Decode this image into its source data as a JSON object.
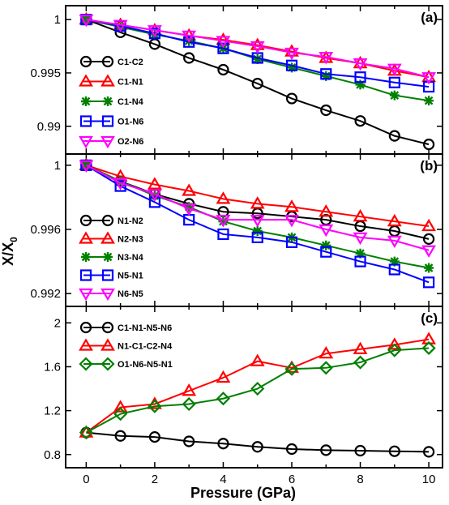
{
  "xlabel": "Pressure (GPa)",
  "ylabel_main": "X/X",
  "ylabel_sub": "0",
  "chart_data": [
    {
      "type": "line",
      "panel_label": "(a)",
      "x": [
        0,
        1,
        2,
        3,
        4,
        5,
        6,
        7,
        8,
        9,
        10
      ],
      "xlim": [
        -0.6,
        10.4
      ],
      "ylim": [
        0.9874,
        1.0013
      ],
      "yticks": [
        0.99,
        0.995,
        1
      ],
      "ytick_labels": [
        "0.99",
        "0.995",
        "1"
      ],
      "legend_position": "left",
      "series": [
        {
          "name": "C1-C2",
          "color": "#000000",
          "marker": "circle",
          "values": [
            1.0,
            0.9988,
            0.9977,
            0.9964,
            0.9953,
            0.994,
            0.9926,
            0.9915,
            0.9905,
            0.9891,
            0.9883
          ]
        },
        {
          "name": "C1-N1",
          "color": "#ff0000",
          "marker": "triangle-up",
          "values": [
            1.0,
            0.9995,
            0.999,
            0.9985,
            0.9981,
            0.9976,
            0.997,
            0.9964,
            0.9959,
            0.9952,
            0.9946
          ]
        },
        {
          "name": "C1-N4",
          "color": "#008000",
          "marker": "asterisk",
          "values": [
            1.0,
            0.9993,
            0.9986,
            0.998,
            0.9973,
            0.9963,
            0.9955,
            0.9947,
            0.9939,
            0.9929,
            0.9924
          ]
        },
        {
          "name": "O1-N6",
          "color": "#0000ff",
          "marker": "square",
          "values": [
            1.0,
            0.9994,
            0.9987,
            0.9979,
            0.9973,
            0.9964,
            0.9957,
            0.9949,
            0.9946,
            0.9941,
            0.9937
          ]
        },
        {
          "name": "O2-N6",
          "color": "#ff00ff",
          "marker": "triangle-down",
          "values": [
            1.0,
            0.9995,
            0.999,
            0.9985,
            0.998,
            0.9975,
            0.9969,
            0.9965,
            0.9959,
            0.9954,
            0.9946
          ]
        }
      ]
    },
    {
      "type": "line",
      "panel_label": "(b)",
      "x": [
        0,
        1,
        2,
        3,
        4,
        5,
        6,
        7,
        8,
        9,
        10
      ],
      "xlim": [
        -0.6,
        10.4
      ],
      "ylim": [
        0.9912,
        1.0007
      ],
      "yticks": [
        0.992,
        0.996,
        1
      ],
      "ytick_labels": [
        "0.992",
        "0.996",
        "1"
      ],
      "legend_position": "left",
      "series": [
        {
          "name": "N1-N2",
          "color": "#000000",
          "marker": "circle",
          "values": [
            1.0,
            0.999,
            0.9982,
            0.9976,
            0.9971,
            0.997,
            0.9968,
            0.9966,
            0.9962,
            0.9959,
            0.9954
          ]
        },
        {
          "name": "N2-N3",
          "color": "#ff0000",
          "marker": "triangle-up",
          "values": [
            1.0,
            0.9993,
            0.9988,
            0.9984,
            0.9979,
            0.9976,
            0.9974,
            0.9971,
            0.9968,
            0.9965,
            0.9962
          ]
        },
        {
          "name": "N3-N4",
          "color": "#008000",
          "marker": "asterisk",
          "values": [
            1.0,
            0.999,
            0.9981,
            0.9974,
            0.9965,
            0.9959,
            0.9955,
            0.995,
            0.9945,
            0.994,
            0.9936
          ]
        },
        {
          "name": "N5-N1",
          "color": "#0000ff",
          "marker": "square",
          "values": [
            1.0,
            0.9987,
            0.9977,
            0.9966,
            0.9957,
            0.9955,
            0.9952,
            0.9946,
            0.994,
            0.9935,
            0.9927
          ]
        },
        {
          "name": "N6-N5",
          "color": "#ff00ff",
          "marker": "triangle-down",
          "values": [
            1.0,
            0.9989,
            0.9982,
            0.9973,
            0.9966,
            0.9966,
            0.9966,
            0.996,
            0.9955,
            0.9953,
            0.9947
          ]
        }
      ]
    },
    {
      "type": "line",
      "panel_label": "(c)",
      "x": [
        0,
        1,
        2,
        3,
        4,
        5,
        6,
        7,
        8,
        9,
        10
      ],
      "xlim": [
        -0.6,
        10.4
      ],
      "ylim": [
        0.68,
        2.15
      ],
      "yticks": [
        0.8,
        1.2,
        1.6,
        2
      ],
      "ytick_labels": [
        "0.8",
        "1.2",
        "1.6",
        "2"
      ],
      "xticks": [
        0,
        2,
        4,
        6,
        8,
        10
      ],
      "xtick_labels": [
        "0",
        "2",
        "4",
        "6",
        "8",
        "10"
      ],
      "legend_position": "top-left",
      "series": [
        {
          "name": "C1-N1-N5-N6",
          "color": "#000000",
          "marker": "circle",
          "values": [
            1.0,
            0.97,
            0.96,
            0.92,
            0.9,
            0.87,
            0.85,
            0.84,
            0.835,
            0.83,
            0.825
          ]
        },
        {
          "name": "N1-C1-C2-N4",
          "color": "#ff0000",
          "marker": "triangle-up",
          "values": [
            1.0,
            1.23,
            1.26,
            1.38,
            1.5,
            1.65,
            1.59,
            1.72,
            1.76,
            1.8,
            1.85
          ]
        },
        {
          "name": "O1-N6-N5-N1",
          "color": "#008000",
          "marker": "diamond",
          "values": [
            1.0,
            1.17,
            1.24,
            1.26,
            1.31,
            1.4,
            1.58,
            1.59,
            1.64,
            1.75,
            1.77
          ]
        }
      ]
    }
  ]
}
